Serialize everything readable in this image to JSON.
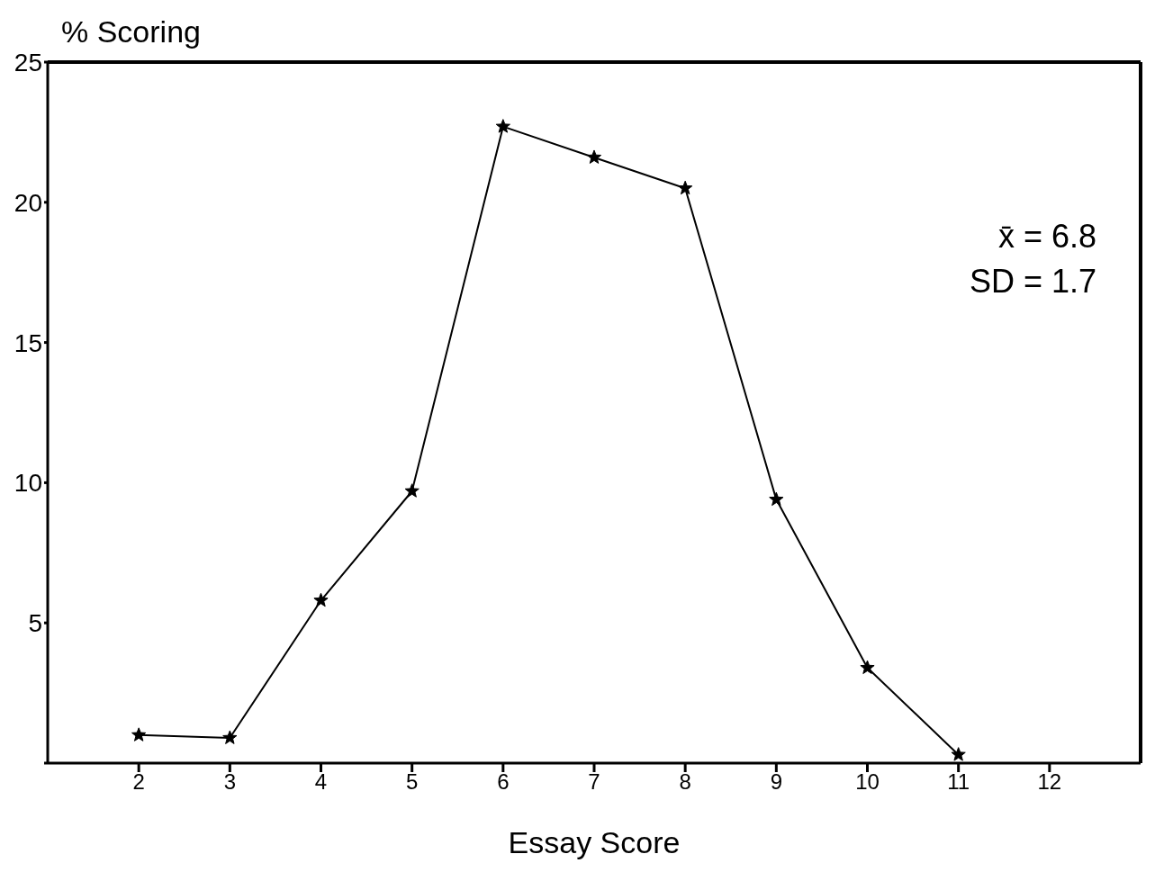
{
  "chart_data": {
    "type": "line",
    "ylabel": "% Scoring",
    "xlabel": "Essay Score",
    "x": [
      2,
      3,
      4,
      5,
      6,
      7,
      8,
      9,
      10,
      11
    ],
    "series": [
      {
        "color": "#000000",
        "values": [
          1.0,
          0.9,
          5.8,
          9.7,
          22.7,
          21.6,
          20.5,
          9.4,
          3.4,
          0.3
        ]
      }
    ],
    "xlim": [
      1,
      13
    ],
    "xticks": [
      2,
      3,
      4,
      5,
      6,
      7,
      8,
      9,
      10,
      11,
      12
    ],
    "ylim": [
      0,
      25
    ],
    "yticks": [
      {
        "value": 0,
        "label": null
      },
      5,
      10,
      15,
      20,
      25
    ],
    "annotations": [
      "x̄ = 6.8",
      "SD = 1.7"
    ],
    "marker": "star",
    "line_style": "solid",
    "grid": false
  }
}
